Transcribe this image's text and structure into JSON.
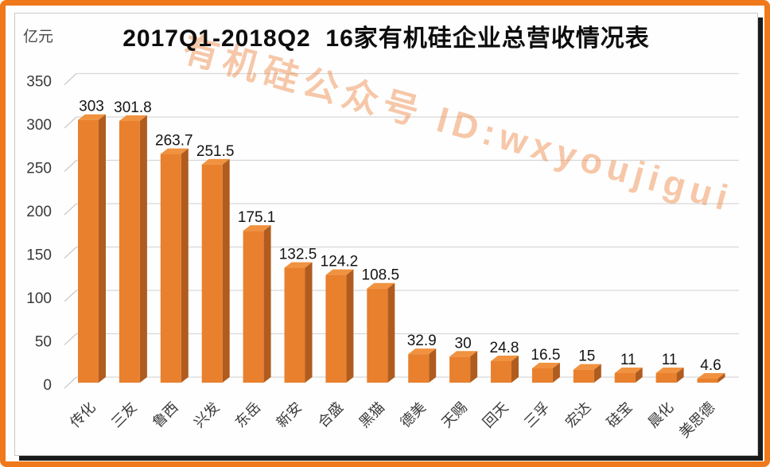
{
  "watermark": {
    "text": "有机硅公众号  ID:wxyoujigui"
  },
  "chart_data": {
    "type": "bar",
    "style": "3d-column",
    "title": "2017Q1-2018Q2  16家有机硅企业总营收情况表",
    "ylabel": "亿元",
    "categories": [
      "传化",
      "三友",
      "鲁西",
      "兴发",
      "东岳",
      "新安",
      "合盛",
      "黑猫",
      "德美",
      "天赐",
      "回天",
      "三孚",
      "宏达",
      "硅宝",
      "晨化",
      "美思德"
    ],
    "values": [
      303,
      301.8,
      263.7,
      251.5,
      175.1,
      132.5,
      124.2,
      108.5,
      32.9,
      30,
      24.8,
      16.5,
      15,
      11,
      11,
      4.6
    ],
    "ylim": [
      0,
      350
    ],
    "yticks": [
      0,
      50,
      100,
      150,
      200,
      250,
      300,
      350
    ],
    "grid": true,
    "legend": "none",
    "colors": {
      "bar_front": "#E8802E",
      "bar_side": "#B05C1F",
      "bar_top": "#F0923F",
      "gridline": "#D8D8D8",
      "tick_connector": "#C9C9C9",
      "axis_text": "#3A3A3A",
      "value_text": "#141414",
      "frame_border": "#F0791B"
    }
  }
}
